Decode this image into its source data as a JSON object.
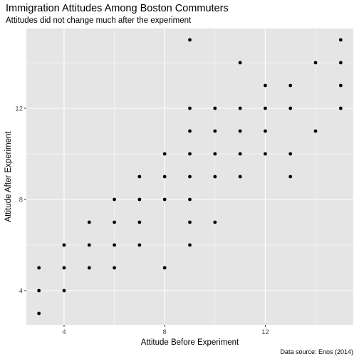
{
  "chart_data": {
    "type": "scatter",
    "title": "Immigration Attitudes Among Boston Commuters",
    "subtitle": "Attitudes did not change much after the experiment",
    "xlabel": "Attitude Before Experiment",
    "ylabel": "Attitude After Experiment",
    "caption": "Data source: Enos (2014)",
    "xlim": [
      2.5,
      15.5
    ],
    "ylim": [
      2.5,
      15.5
    ],
    "x_ticks": [
      4,
      8,
      12
    ],
    "y_ticks": [
      4,
      8,
      12
    ],
    "grid": true,
    "colors": {
      "panel": "#e5e5e5",
      "grid_major": "#ffffff",
      "point": "#000000",
      "tick_label": "#4d4d4d"
    },
    "points": [
      [
        3,
        3
      ],
      [
        3,
        4
      ],
      [
        3,
        5
      ],
      [
        4,
        4
      ],
      [
        4,
        5
      ],
      [
        4,
        6
      ],
      [
        5,
        5
      ],
      [
        5,
        6
      ],
      [
        5,
        7
      ],
      [
        6,
        5
      ],
      [
        6,
        6
      ],
      [
        6,
        7
      ],
      [
        6,
        8
      ],
      [
        7,
        6
      ],
      [
        7,
        7
      ],
      [
        7,
        8
      ],
      [
        7,
        9
      ],
      [
        8,
        5
      ],
      [
        8,
        8
      ],
      [
        8,
        9
      ],
      [
        8,
        10
      ],
      [
        9,
        6
      ],
      [
        9,
        7
      ],
      [
        9,
        8
      ],
      [
        9,
        9
      ],
      [
        9,
        10
      ],
      [
        9,
        11
      ],
      [
        9,
        12
      ],
      [
        9,
        15
      ],
      [
        10,
        7
      ],
      [
        10,
        9
      ],
      [
        10,
        10
      ],
      [
        10,
        11
      ],
      [
        10,
        12
      ],
      [
        11,
        9
      ],
      [
        11,
        10
      ],
      [
        11,
        11
      ],
      [
        11,
        12
      ],
      [
        11,
        14
      ],
      [
        12,
        10
      ],
      [
        12,
        11
      ],
      [
        12,
        12
      ],
      [
        12,
        13
      ],
      [
        13,
        9
      ],
      [
        13,
        10
      ],
      [
        13,
        12
      ],
      [
        13,
        13
      ],
      [
        14,
        11
      ],
      [
        14,
        14
      ],
      [
        15,
        12
      ],
      [
        15,
        13
      ],
      [
        15,
        14
      ],
      [
        15,
        15
      ]
    ]
  }
}
